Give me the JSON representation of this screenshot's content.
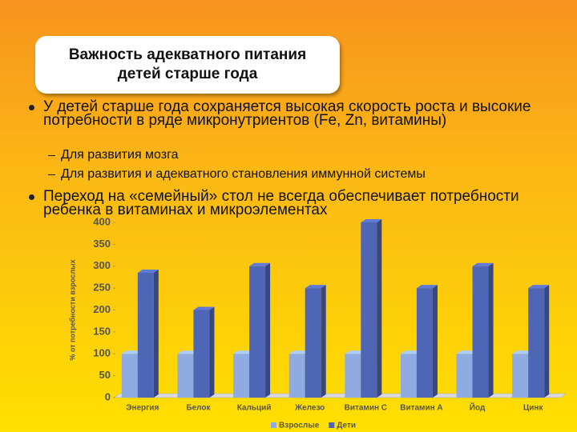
{
  "slide": {
    "title": "Важность адекватного питания детей старше года",
    "bullets": [
      {
        "text": "У детей старше года сохраняется высокая скорость роста и высокие потребности в ряде микронутриентов (Fe, Zn, витамины)",
        "subitems": [
          "Для развития мозга",
          "Для развития и адекватного становления иммунной системы"
        ]
      },
      {
        "text": "Переход на «семейный» стол не всегда обеспечивает потребности ребенка в витаминах и микроэлементах",
        "subitems": []
      }
    ]
  },
  "chart_data": {
    "type": "bar",
    "ylabel": "% от потребности взрослых",
    "categories": [
      "Энергия",
      "Белок",
      "Кальций",
      "Железо",
      "Витамин С",
      "Витамин А",
      "Йод",
      "Цинк"
    ],
    "series": [
      {
        "name": "Взрослые",
        "color": "#8fabe2",
        "values": [
          100,
          100,
          100,
          100,
          100,
          100,
          100,
          100
        ]
      },
      {
        "name": "Дети",
        "color": "#4f66b6",
        "values": [
          285,
          200,
          300,
          250,
          400,
          250,
          300,
          250
        ]
      }
    ],
    "ylim": [
      0,
      400
    ],
    "yticks": [
      0,
      50,
      100,
      150,
      200,
      250,
      300,
      350,
      400
    ],
    "grid": false
  }
}
